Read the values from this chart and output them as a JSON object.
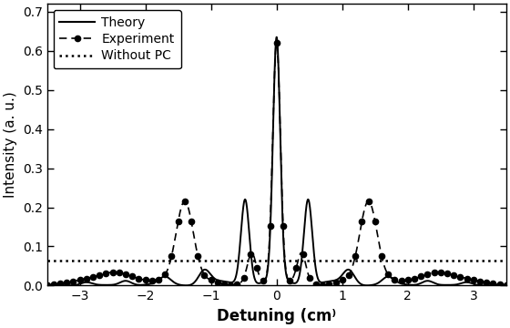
{
  "title": "",
  "xlabel": "Detuning (cm⁾",
  "ylabel": "Intensity (a. u.)",
  "xlim": [
    -3.5,
    3.5
  ],
  "ylim": [
    0.0,
    0.72
  ],
  "yticks": [
    0.0,
    0.1,
    0.2,
    0.3,
    0.4,
    0.5,
    0.6,
    0.7
  ],
  "xticks": [
    -3,
    -2,
    -1,
    0,
    1,
    2,
    3
  ],
  "without_pc_value": 0.063,
  "legend_labels": [
    "Theory",
    "Experiment",
    "Without PC"
  ],
  "background_color": "#ffffff",
  "line_color": "#000000"
}
